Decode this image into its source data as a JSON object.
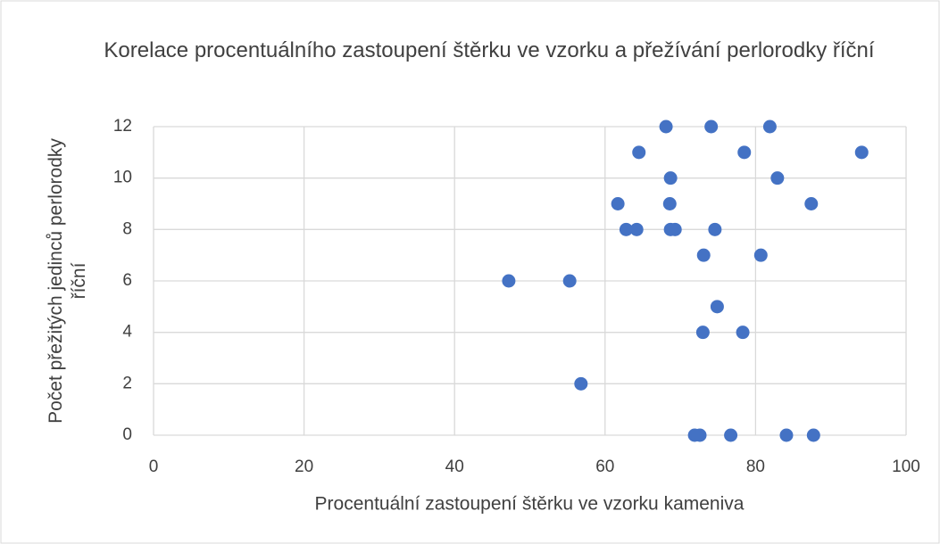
{
  "chart_data": {
    "type": "scatter",
    "title": "Korelace procentuálního zastoupení štěrku ve vzorku a přežívání perlorodky říční",
    "xlabel": "Procentuální zastoupení štěrku ve vzorku kameniva",
    "ylabel": "Počet přežitých jedinců perlorodky říční",
    "color": "#4472c4",
    "x": [
      68.1,
      74.1,
      81.9,
      64.5,
      78.5,
      94.1,
      68.7,
      82.9,
      61.7,
      68.6,
      87.4,
      62.8,
      64.2,
      68.7,
      69.3,
      74.6,
      73.1,
      80.7,
      47.2,
      55.3,
      74.9,
      73.0,
      78.3,
      56.8,
      71.9,
      72.6,
      76.7,
      84.1,
      87.7
    ],
    "values": [
      12,
      12,
      12,
      11,
      11,
      11,
      10,
      10,
      9,
      9,
      9,
      8,
      8,
      8,
      8,
      8,
      7,
      7,
      6,
      6,
      5,
      4,
      4,
      2,
      0,
      0,
      0,
      0,
      0
    ],
    "xlim": [
      0,
      100
    ],
    "xticks": [
      0,
      20,
      40,
      60,
      80,
      100
    ],
    "ylim": [
      0,
      12
    ],
    "yticks": [
      0,
      2,
      4,
      6,
      8,
      10,
      12
    ],
    "grid": true
  }
}
